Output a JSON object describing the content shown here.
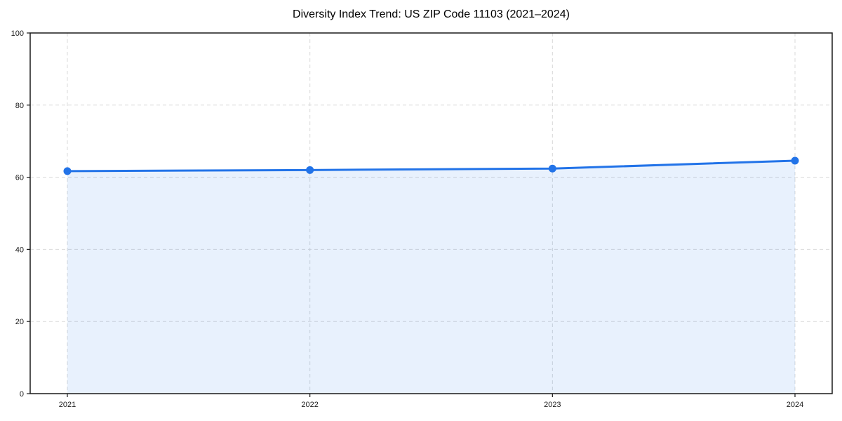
{
  "page": {
    "background": "#ffffff"
  },
  "header": {
    "title": "Diversity Index Trend: US ZIP Code 11103 (2021–2024)"
  },
  "chart_data": {
    "type": "line",
    "title": "Diversity Index Trend: US ZIP Code 11103 (2021–2024)",
    "x": [
      "2021",
      "2022",
      "2023",
      "2024"
    ],
    "series": [
      {
        "name": "Diversity Index",
        "values": [
          61.7,
          62.0,
          62.4,
          64.6
        ],
        "marker": "circle",
        "area_fill": true
      }
    ],
    "xlabel": "",
    "ylabel": "",
    "ylim": [
      0,
      100
    ],
    "yticks": [
      0,
      20,
      40,
      60,
      80,
      100
    ],
    "grid": true,
    "grid_style": "dashed",
    "grid_axes": "both",
    "legend_position": "none",
    "colors": {
      "line": "#2273e8",
      "marker": "#2273e8",
      "area_fill_rgba": "rgba(34,115,232,0.10)",
      "gridline": "#d9d9d9",
      "axis_spine": "#1a1a1a",
      "tick_label": "#1a1a1a",
      "title": "#000000",
      "plot_background": "#ffffff"
    }
  }
}
